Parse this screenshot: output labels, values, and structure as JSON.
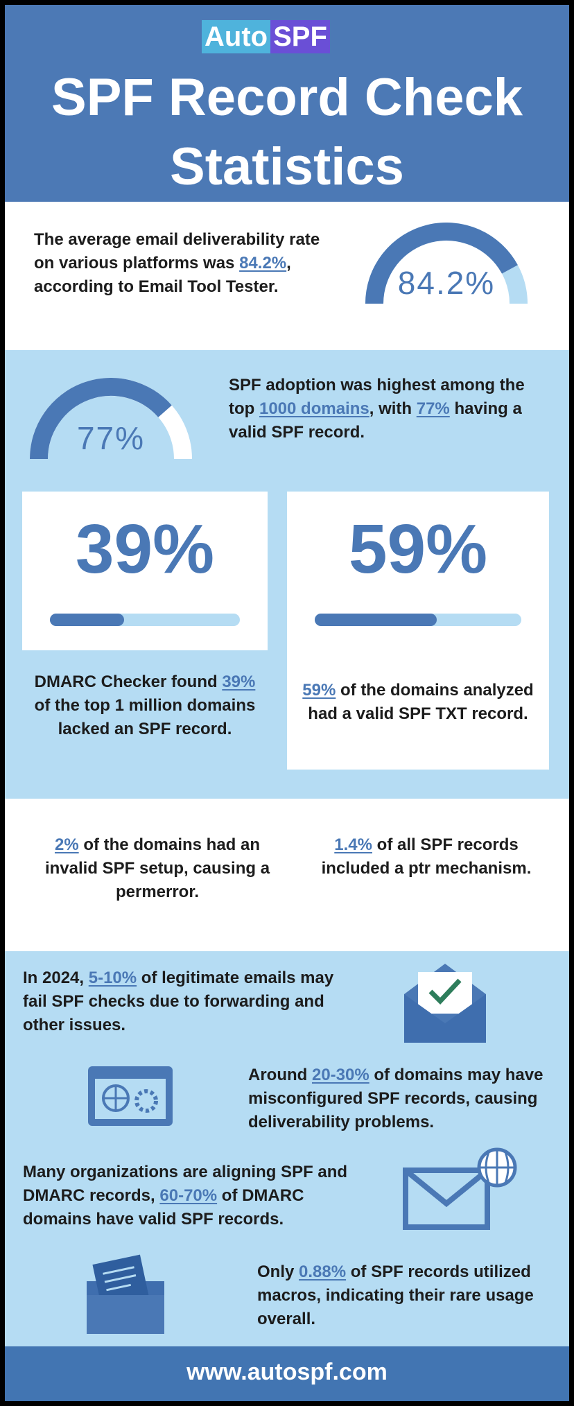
{
  "header": {
    "logo_auto": "Auto",
    "logo_spf": "SPF",
    "title": "SPF Record Check Statistics"
  },
  "intro": {
    "text": [
      "The average email deliverability rate on various platforms was ",
      {
        "link": "84.2%"
      },
      ", according to Email Tool Tester."
    ],
    "gauge": {
      "value": 84.2,
      "label": "84.2%"
    }
  },
  "adoption": {
    "text": [
      "SPF adoption was highest among the top ",
      {
        "link": "1000 domains"
      },
      ", with ",
      {
        "link": "77%"
      },
      " having a valid SPF record."
    ],
    "gauge": {
      "value": 77,
      "label": "77%"
    }
  },
  "cards": [
    {
      "big": {
        "value": 39,
        "label": "39%"
      },
      "text": [
        "DMARC Checker found ",
        {
          "link": "39%"
        },
        " of the top 1 million domains lacked an SPF record."
      ]
    },
    {
      "big": {
        "value": 59,
        "label": "59%"
      },
      "text": [
        {
          "link": "59%"
        },
        " of the domains analyzed had a valid SPF TXT record."
      ]
    }
  ],
  "errors": [
    [
      {
        "link": "2%"
      },
      " of the domains had an invalid SPF setup, causing a permerror."
    ],
    [
      {
        "link": "1.4%"
      },
      " of all SPF records included a ptr mechanism."
    ]
  ],
  "facts": [
    [
      "In 2024, ",
      {
        "link": "5-10%"
      },
      " of legitimate emails may fail SPF checks due to forwarding and other issues."
    ],
    [
      "Around ",
      {
        "link": "20-30%"
      },
      " of domains may have misconfigured SPF records, causing deliverability problems."
    ],
    [
      "Many organizations are aligning SPF and DMARC records, ",
      {
        "link": "60-70%"
      },
      " of DMARC domains have valid SPF records."
    ],
    [
      "Only ",
      {
        "link": "0.88%"
      },
      " of SPF records utilized macros, indicating their rare usage overall."
    ]
  ],
  "footer": {
    "url": "www.autospf.com"
  }
}
